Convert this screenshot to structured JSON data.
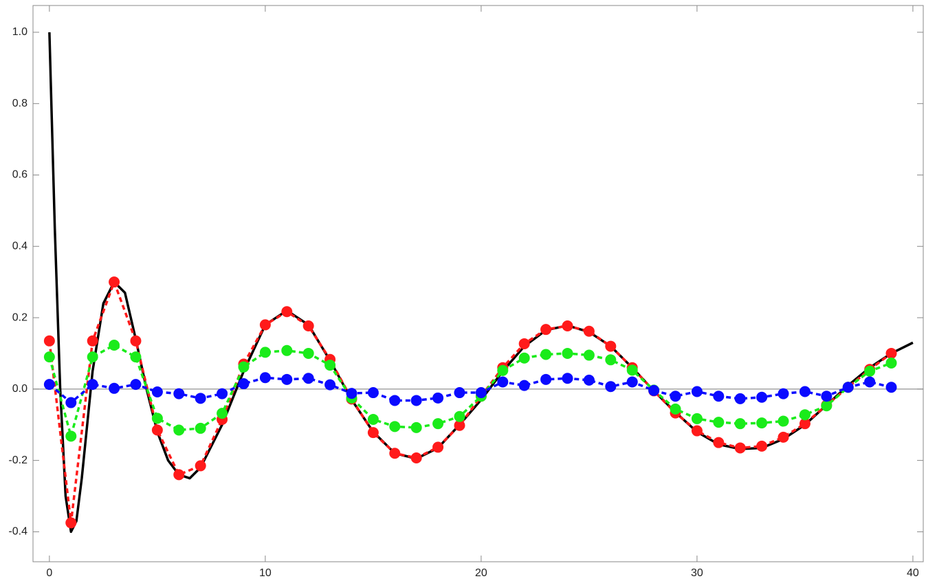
{
  "chart_data": {
    "type": "line",
    "xlim": [
      -0.76,
      40.48
    ],
    "ylim": [
      -0.484,
      1.075
    ],
    "xticks": [
      0,
      10,
      20,
      30,
      40
    ],
    "yticks": [
      -0.4,
      -0.2,
      {
        "value": 0,
        "label": "0.0"
      },
      0.2,
      0.4,
      0.6,
      0.8,
      {
        "value": 1,
        "label": "1.0"
      }
    ],
    "series": [
      {
        "color": "#000000",
        "line_style": "solid",
        "markers": false,
        "x": [
          0,
          0.25,
          0.5,
          0.75,
          1,
          1.25,
          1.5,
          2,
          2.5,
          3,
          3.5,
          4,
          4.5,
          5,
          5.5,
          6,
          6.5,
          7,
          8,
          9,
          10,
          11,
          12,
          13,
          14,
          15,
          16,
          17,
          18,
          19,
          20,
          21,
          22,
          23,
          24,
          25,
          26,
          27,
          28,
          29,
          30,
          31,
          32,
          33,
          34,
          35,
          36,
          37,
          38,
          39,
          40
        ],
        "values": [
          1.0,
          0.45,
          0.0,
          -0.3,
          -0.4,
          -0.37,
          -0.25,
          0.05,
          0.24,
          0.3,
          0.27,
          0.14,
          0.0,
          -0.12,
          -0.2,
          -0.24,
          -0.25,
          -0.22,
          -0.1,
          0.05,
          0.18,
          0.22,
          0.18,
          0.08,
          -0.03,
          -0.12,
          -0.18,
          -0.195,
          -0.165,
          -0.1,
          -0.03,
          0.05,
          0.12,
          0.165,
          0.178,
          0.16,
          0.12,
          0.06,
          -0.005,
          -0.065,
          -0.12,
          -0.155,
          -0.168,
          -0.165,
          -0.14,
          -0.1,
          -0.045,
          0.01,
          0.06,
          0.1,
          0.13
        ]
      },
      {
        "color": "#ff1a1a",
        "line_style": "dashed",
        "markers": true,
        "x": [
          0,
          1,
          2,
          3,
          4,
          5,
          6,
          7,
          8,
          9,
          10,
          11,
          12,
          13,
          14,
          15,
          16,
          17,
          18,
          19,
          20,
          21,
          22,
          23,
          24,
          25,
          26,
          27,
          28,
          29,
          30,
          31,
          32,
          33,
          34,
          35,
          36,
          37,
          38,
          39
        ],
        "values": [
          0.135,
          -0.375,
          0.135,
          0.3,
          0.135,
          -0.115,
          -0.24,
          -0.215,
          -0.085,
          0.07,
          0.18,
          0.217,
          0.177,
          0.083,
          -0.028,
          -0.122,
          -0.18,
          -0.193,
          -0.163,
          -0.102,
          -0.02,
          0.06,
          0.127,
          0.167,
          0.177,
          0.162,
          0.12,
          0.06,
          -0.005,
          -0.067,
          -0.117,
          -0.15,
          -0.165,
          -0.16,
          -0.135,
          -0.097,
          -0.045,
          0.005,
          0.055,
          0.1
        ]
      },
      {
        "color": "#1aeb1a",
        "line_style": "dashed",
        "markers": true,
        "x": [
          0,
          1,
          2,
          3,
          4,
          5,
          6,
          7,
          8,
          9,
          10,
          11,
          12,
          13,
          14,
          15,
          16,
          17,
          18,
          19,
          20,
          21,
          22,
          23,
          24,
          25,
          26,
          27,
          28,
          29,
          30,
          31,
          32,
          33,
          34,
          35,
          36,
          37,
          38,
          39
        ],
        "values": [
          0.09,
          -0.132,
          0.09,
          0.123,
          0.09,
          -0.082,
          -0.115,
          -0.11,
          -0.068,
          0.062,
          0.103,
          0.108,
          0.1,
          0.067,
          -0.025,
          -0.085,
          -0.105,
          -0.108,
          -0.097,
          -0.077,
          -0.02,
          0.052,
          0.087,
          0.097,
          0.1,
          0.095,
          0.082,
          0.053,
          -0.003,
          -0.056,
          -0.083,
          -0.093,
          -0.097,
          -0.095,
          -0.09,
          -0.072,
          -0.047,
          0.005,
          0.05,
          0.073
        ]
      },
      {
        "color": "#0a0aff",
        "line_style": "dashed",
        "markers": true,
        "x": [
          0,
          1,
          2,
          3,
          4,
          5,
          6,
          7,
          8,
          9,
          10,
          11,
          12,
          13,
          14,
          15,
          16,
          17,
          18,
          19,
          20,
          21,
          22,
          23,
          24,
          25,
          26,
          27,
          28,
          29,
          30,
          31,
          32,
          33,
          34,
          35,
          36,
          37,
          38,
          39
        ],
        "values": [
          0.013,
          -0.038,
          0.013,
          0.002,
          0.013,
          -0.008,
          -0.013,
          -0.026,
          -0.013,
          0.015,
          0.032,
          0.027,
          0.03,
          0.012,
          -0.012,
          -0.01,
          -0.032,
          -0.032,
          -0.025,
          -0.01,
          -0.01,
          0.02,
          0.01,
          0.027,
          0.03,
          0.025,
          0.007,
          0.02,
          -0.004,
          -0.02,
          -0.007,
          -0.02,
          -0.027,
          -0.023,
          -0.013,
          -0.007,
          -0.02,
          0.005,
          0.02,
          0.005
        ]
      }
    ]
  }
}
